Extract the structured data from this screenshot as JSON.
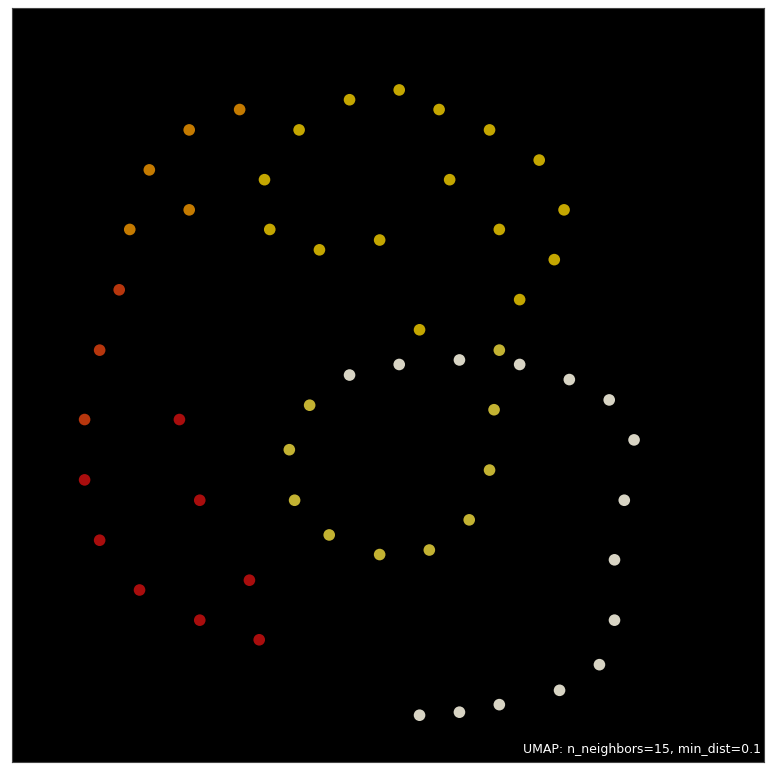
{
  "chart_data": {
    "type": "scatter",
    "annotation": "UMAP: n_neighbors=15, min_dist=0.1",
    "x": [
      54.2,
      59.5,
      64.8,
      72.8,
      78.1,
      80.1,
      80.1,
      81.4,
      82.7,
      79.4,
      74.1,
      67.5,
      59.5,
      51.5,
      44.9,
      39.6,
      36.9,
      37.6,
      42.2,
      48.9,
      55.5,
      60.8,
      63.5,
      64.1,
      64.8,
      67.5,
      72.1,
      73.4,
      70.1,
      63.5,
      56.8,
      51.5,
      44.9,
      38.2,
      33.6,
      34.3,
      40.9,
      48.9,
      58.2,
      64.8,
      54.2,
      30.3,
      23.6,
      18.3,
      15.7,
      23.6,
      14.3,
      11.7,
      9.7,
      9.7,
      11.7,
      17.0,
      25.0,
      32.9,
      22.3,
      25.0,
      31.6
    ],
    "y": [
      6.2,
      6.6,
      7.6,
      9.5,
      12.9,
      18.8,
      26.8,
      34.7,
      42.7,
      48.0,
      50.7,
      52.7,
      53.3,
      52.7,
      51.3,
      47.3,
      41.4,
      34.7,
      30.1,
      27.5,
      28.1,
      32.1,
      38.7,
      46.7,
      54.6,
      61.3,
      66.6,
      73.2,
      79.8,
      83.8,
      86.5,
      89.1,
      87.8,
      83.8,
      77.2,
      70.6,
      67.9,
      69.2,
      77.2,
      70.6,
      57.3,
      86.5,
      83.8,
      78.5,
      70.6,
      73.2,
      62.6,
      54.6,
      45.4,
      37.4,
      29.4,
      22.8,
      18.8,
      16.2,
      45.4,
      34.7,
      24.1
    ],
    "colors": [
      "#fffbe8",
      "#fffbe8",
      "#fffbe8",
      "#fffbe8",
      "#fffbe8",
      "#fffbe8",
      "#fffbe8",
      "#fffbe8",
      "#fffbe8",
      "#fffbe8",
      "#fffbe8",
      "#fffbe8",
      "#fffbe8",
      "#fffbe8",
      "#fffbe8",
      "#e6d23c",
      "#e6d23c",
      "#e6d23c",
      "#e6d23c",
      "#e6d23c",
      "#e6d23c",
      "#e6d23c",
      "#e6d23c",
      "#e6d23c",
      "#e6d23c",
      "#e8c400",
      "#e8c400",
      "#e8c400",
      "#e8c400",
      "#e8c400",
      "#e8c400",
      "#e8c400",
      "#e8c400",
      "#e8c400",
      "#e8c400",
      "#e8c400",
      "#e8c400",
      "#e8c400",
      "#e8c400",
      "#e8c400",
      "#e8c400",
      "#e89000",
      "#e89000",
      "#e89000",
      "#e89000",
      "#e89000",
      "#d84010",
      "#d84010",
      "#d84010",
      "#c81010",
      "#c81010",
      "#c81010",
      "#c81010",
      "#c81010",
      "#c81010",
      "#c81010",
      "#c81010"
    ],
    "xlim": [
      0,
      100
    ],
    "ylim": [
      0,
      100
    ],
    "tick_labels": false
  }
}
